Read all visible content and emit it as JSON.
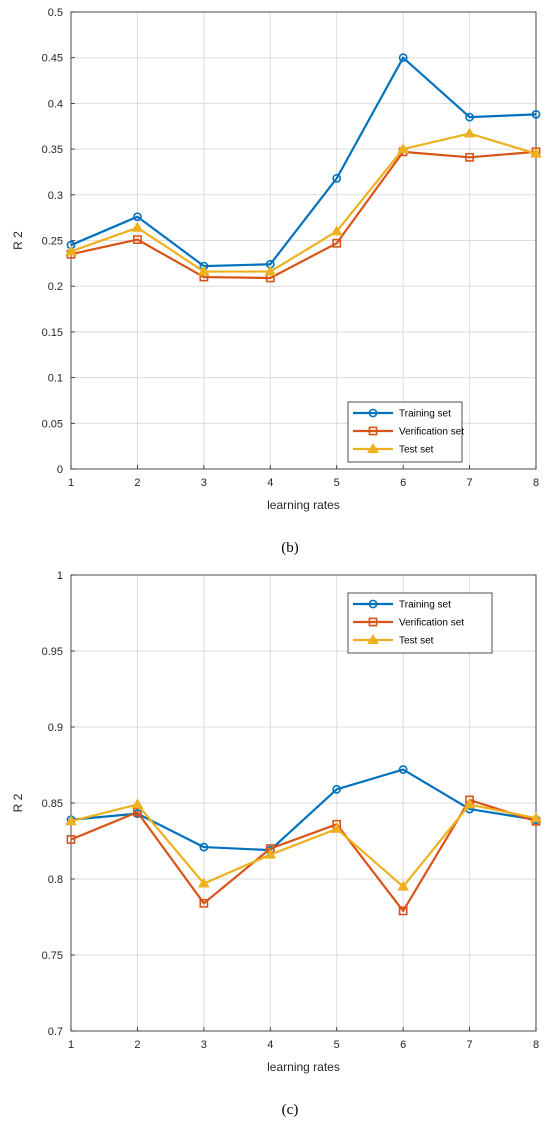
{
  "colors": {
    "training": "#0072BD",
    "verification": "#D95319",
    "test": "#EDB120",
    "grid": "#dcdcdc",
    "axis": "#262626"
  },
  "chart_data": [
    {
      "type": "line",
      "caption": "(b)",
      "xlabel": "learning rates",
      "ylabel": "R 2",
      "xlim": [
        1,
        8
      ],
      "ylim": [
        0,
        0.5
      ],
      "grid": true,
      "legend_placement": "bottom-right",
      "x": [
        1,
        2,
        3,
        4,
        5,
        6,
        7,
        8
      ],
      "x_ticks": [
        "1",
        "2",
        "3",
        "4",
        "5",
        "6",
        "7",
        "8"
      ],
      "y_ticks": [
        "0",
        "0.05",
        "0.1",
        "0.15",
        "0.2",
        "0.25",
        "0.3",
        "0.35",
        "0.4",
        "0.45",
        "0.5"
      ],
      "series": [
        {
          "name": "Training set",
          "marker": "circle",
          "color_key": "training",
          "values": [
            0.245,
            0.276,
            0.222,
            0.224,
            0.318,
            0.45,
            0.385,
            0.388
          ]
        },
        {
          "name": "Verification set",
          "marker": "square",
          "color_key": "verification",
          "values": [
            0.235,
            0.251,
            0.21,
            0.209,
            0.247,
            0.347,
            0.341,
            0.347
          ]
        },
        {
          "name": "Test set",
          "marker": "triangle",
          "color_key": "test",
          "values": [
            0.238,
            0.264,
            0.216,
            0.216,
            0.26,
            0.35,
            0.367,
            0.345
          ]
        }
      ]
    },
    {
      "type": "line",
      "caption": "(c)",
      "xlabel": "learning rates",
      "ylabel": "R 2",
      "xlim": [
        1,
        8
      ],
      "ylim": [
        0.7,
        1
      ],
      "grid": true,
      "legend_placement": "top-right",
      "x": [
        1,
        2,
        3,
        4,
        5,
        6,
        7,
        8
      ],
      "x_ticks": [
        "1",
        "2",
        "3",
        "4",
        "5",
        "6",
        "7",
        "8"
      ],
      "y_ticks": [
        "0.7",
        "0.75",
        "0.8",
        "0.85",
        "0.9",
        "0.95",
        "1"
      ],
      "series": [
        {
          "name": "Training set",
          "marker": "circle",
          "color_key": "training",
          "values": [
            0.839,
            0.843,
            0.821,
            0.819,
            0.859,
            0.872,
            0.846,
            0.839
          ]
        },
        {
          "name": "Verification set",
          "marker": "square",
          "color_key": "verification",
          "values": [
            0.826,
            0.844,
            0.784,
            0.82,
            0.836,
            0.779,
            0.852,
            0.838
          ]
        },
        {
          "name": "Test set",
          "marker": "triangle",
          "color_key": "test",
          "values": [
            0.838,
            0.849,
            0.797,
            0.816,
            0.833,
            0.795,
            0.849,
            0.84
          ]
        }
      ]
    }
  ]
}
